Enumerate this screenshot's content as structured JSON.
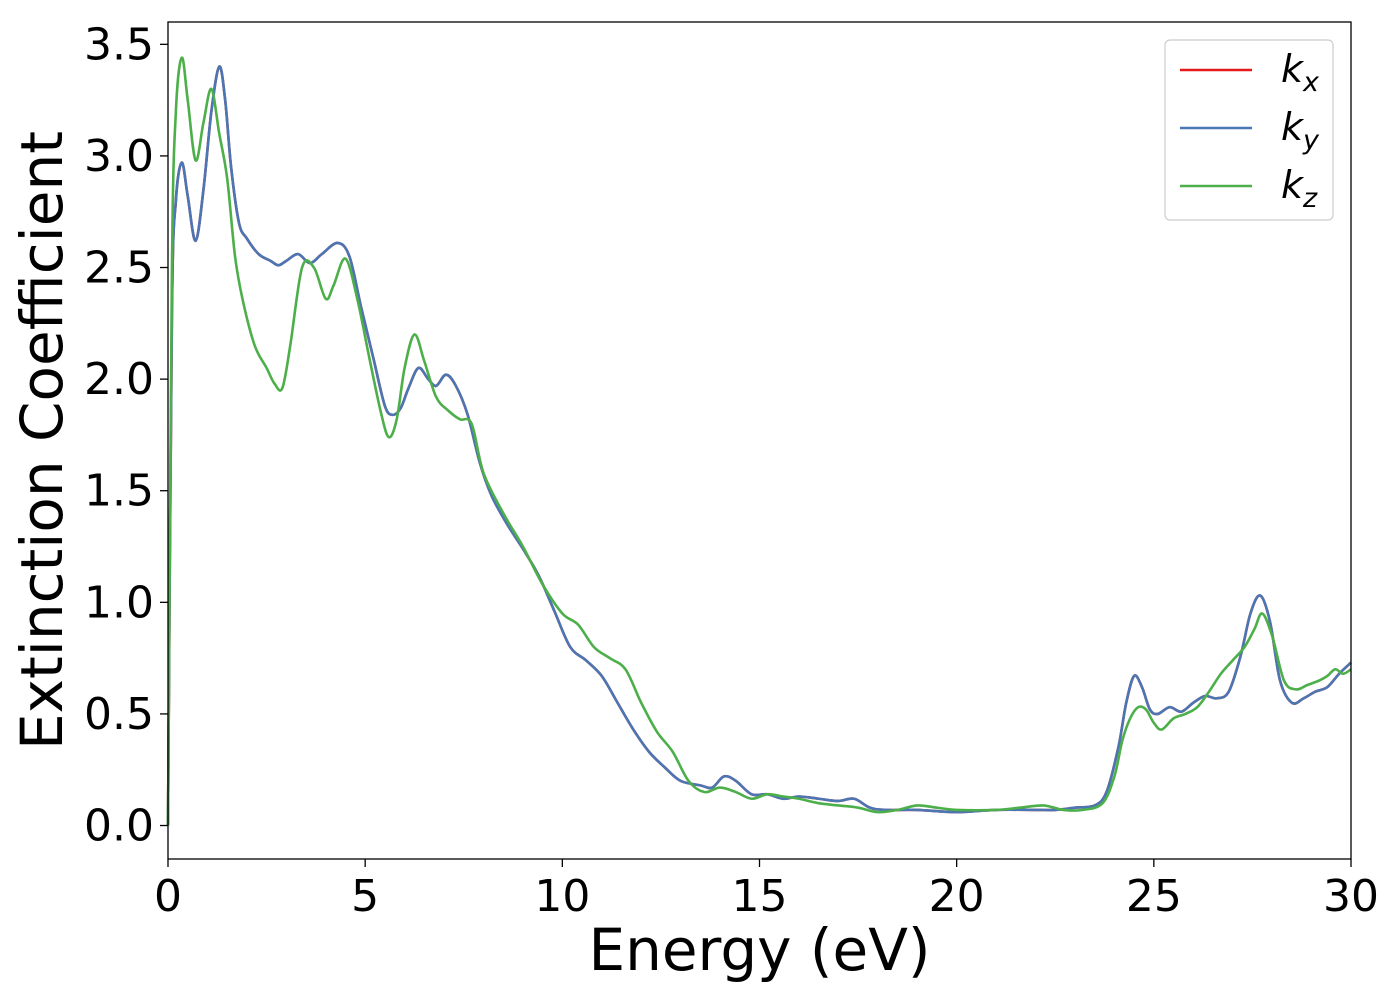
{
  "chart_data": {
    "type": "line",
    "xlabel": "Energy (eV)",
    "ylabel": "Extinction Coefficient",
    "xlim": [
      0,
      30
    ],
    "ylim": [
      -0.15,
      3.6
    ],
    "xticks": [
      0,
      5,
      10,
      15,
      20,
      25,
      30
    ],
    "yticks": [
      0.0,
      0.5,
      1.0,
      1.5,
      2.0,
      2.5,
      3.0,
      3.5
    ],
    "grid": false,
    "legend_position": "top-right",
    "series": [
      {
        "name": "k",
        "sub": "x",
        "color": "#e41a1c",
        "x": [
          0,
          0.1,
          0.2,
          0.35,
          0.5,
          0.7,
          0.9,
          1.1,
          1.3,
          1.45,
          1.6,
          1.8,
          2.0,
          2.3,
          2.6,
          2.8,
          3.0,
          3.3,
          3.6,
          3.9,
          4.3,
          4.6,
          4.9,
          5.2,
          5.5,
          5.7,
          5.9,
          6.1,
          6.35,
          6.6,
          6.8,
          7.05,
          7.3,
          7.6,
          7.9,
          8.2,
          8.6,
          9.0,
          9.4,
          9.8,
          10.2,
          10.6,
          11.0,
          11.4,
          11.8,
          12.2,
          12.6,
          13.0,
          13.5,
          13.8,
          14.1,
          14.4,
          14.8,
          15.2,
          15.6,
          16.0,
          16.5,
          17.0,
          17.4,
          17.8,
          18.2,
          19.0,
          20.0,
          21.0,
          22.0,
          22.5,
          23.0,
          23.5,
          23.8,
          24.1,
          24.3,
          24.5,
          24.7,
          24.9,
          25.1,
          25.4,
          25.7,
          26.0,
          26.3,
          26.6,
          26.9,
          27.2,
          27.45,
          27.7,
          27.95,
          28.2,
          28.5,
          28.8,
          29.1,
          29.4,
          29.7,
          30.0
        ],
        "y": [
          0.0,
          2.3,
          2.8,
          2.97,
          2.82,
          2.62,
          2.85,
          3.2,
          3.4,
          3.25,
          2.95,
          2.7,
          2.63,
          2.56,
          2.53,
          2.51,
          2.53,
          2.56,
          2.52,
          2.56,
          2.61,
          2.55,
          2.32,
          2.1,
          1.88,
          1.84,
          1.87,
          1.96,
          2.05,
          2.0,
          1.97,
          2.02,
          1.97,
          1.84,
          1.63,
          1.48,
          1.35,
          1.24,
          1.12,
          0.96,
          0.8,
          0.74,
          0.67,
          0.55,
          0.43,
          0.33,
          0.26,
          0.2,
          0.18,
          0.17,
          0.22,
          0.2,
          0.14,
          0.14,
          0.12,
          0.13,
          0.12,
          0.11,
          0.12,
          0.08,
          0.07,
          0.07,
          0.06,
          0.07,
          0.07,
          0.07,
          0.08,
          0.09,
          0.15,
          0.35,
          0.55,
          0.67,
          0.62,
          0.52,
          0.5,
          0.53,
          0.51,
          0.55,
          0.58,
          0.57,
          0.6,
          0.76,
          0.95,
          1.03,
          0.91,
          0.65,
          0.55,
          0.57,
          0.6,
          0.62,
          0.68,
          0.73
        ]
      },
      {
        "name": "k",
        "sub": "y",
        "color": "#4a76b4",
        "x": [
          0,
          0.1,
          0.2,
          0.35,
          0.5,
          0.7,
          0.9,
          1.1,
          1.3,
          1.45,
          1.6,
          1.8,
          2.0,
          2.3,
          2.6,
          2.8,
          3.0,
          3.3,
          3.6,
          3.9,
          4.3,
          4.6,
          4.9,
          5.2,
          5.5,
          5.7,
          5.9,
          6.1,
          6.35,
          6.6,
          6.8,
          7.05,
          7.3,
          7.6,
          7.9,
          8.2,
          8.6,
          9.0,
          9.4,
          9.8,
          10.2,
          10.6,
          11.0,
          11.4,
          11.8,
          12.2,
          12.6,
          13.0,
          13.5,
          13.8,
          14.1,
          14.4,
          14.8,
          15.2,
          15.6,
          16.0,
          16.5,
          17.0,
          17.4,
          17.8,
          18.2,
          19.0,
          20.0,
          21.0,
          22.0,
          22.5,
          23.0,
          23.5,
          23.8,
          24.1,
          24.3,
          24.5,
          24.7,
          24.9,
          25.1,
          25.4,
          25.7,
          26.0,
          26.3,
          26.6,
          26.9,
          27.2,
          27.45,
          27.7,
          27.95,
          28.2,
          28.5,
          28.8,
          29.1,
          29.4,
          29.7,
          30.0
        ],
        "y": [
          0.0,
          2.3,
          2.8,
          2.97,
          2.82,
          2.62,
          2.85,
          3.2,
          3.4,
          3.25,
          2.95,
          2.7,
          2.63,
          2.56,
          2.53,
          2.51,
          2.53,
          2.56,
          2.52,
          2.56,
          2.61,
          2.55,
          2.32,
          2.1,
          1.88,
          1.84,
          1.87,
          1.96,
          2.05,
          2.0,
          1.97,
          2.02,
          1.97,
          1.84,
          1.63,
          1.48,
          1.35,
          1.24,
          1.12,
          0.96,
          0.8,
          0.74,
          0.67,
          0.55,
          0.43,
          0.33,
          0.26,
          0.2,
          0.18,
          0.17,
          0.22,
          0.2,
          0.14,
          0.14,
          0.12,
          0.13,
          0.12,
          0.11,
          0.12,
          0.08,
          0.07,
          0.07,
          0.06,
          0.07,
          0.07,
          0.07,
          0.08,
          0.09,
          0.15,
          0.35,
          0.55,
          0.67,
          0.62,
          0.52,
          0.5,
          0.53,
          0.51,
          0.55,
          0.58,
          0.57,
          0.6,
          0.76,
          0.95,
          1.03,
          0.91,
          0.65,
          0.55,
          0.57,
          0.6,
          0.62,
          0.68,
          0.73
        ]
      },
      {
        "name": "k",
        "sub": "z",
        "color": "#4daf4a",
        "x": [
          0,
          0.1,
          0.2,
          0.35,
          0.5,
          0.7,
          0.9,
          1.1,
          1.3,
          1.5,
          1.7,
          1.9,
          2.2,
          2.5,
          2.7,
          2.9,
          3.1,
          3.4,
          3.7,
          4.0,
          4.2,
          4.5,
          4.8,
          5.1,
          5.4,
          5.6,
          5.8,
          6.0,
          6.25,
          6.5,
          6.8,
          7.1,
          7.4,
          7.7,
          8.0,
          8.5,
          9.0,
          9.5,
          10.0,
          10.4,
          10.8,
          11.2,
          11.6,
          12.0,
          12.4,
          12.8,
          13.2,
          13.6,
          14.0,
          14.4,
          14.8,
          15.2,
          15.6,
          16.0,
          16.5,
          17.0,
          17.5,
          18.0,
          18.5,
          19.0,
          19.5,
          20.0,
          21.0,
          21.6,
          22.2,
          22.7,
          23.2,
          23.7,
          24.0,
          24.2,
          24.4,
          24.6,
          24.8,
          25.0,
          25.2,
          25.5,
          25.8,
          26.1,
          26.4,
          26.7,
          27.0,
          27.3,
          27.55,
          27.75,
          28.0,
          28.3,
          28.6,
          28.9,
          29.2,
          29.4,
          29.6,
          29.8,
          30.0
        ],
        "y": [
          0.0,
          2.5,
          3.2,
          3.44,
          3.25,
          2.98,
          3.15,
          3.3,
          3.1,
          2.9,
          2.55,
          2.35,
          2.15,
          2.05,
          1.98,
          1.96,
          2.15,
          2.5,
          2.5,
          2.36,
          2.42,
          2.54,
          2.36,
          2.1,
          1.85,
          1.74,
          1.82,
          2.05,
          2.2,
          2.08,
          1.92,
          1.86,
          1.82,
          1.8,
          1.58,
          1.4,
          1.25,
          1.08,
          0.95,
          0.9,
          0.8,
          0.75,
          0.7,
          0.55,
          0.42,
          0.33,
          0.2,
          0.15,
          0.17,
          0.15,
          0.12,
          0.14,
          0.13,
          0.12,
          0.1,
          0.09,
          0.08,
          0.06,
          0.07,
          0.09,
          0.08,
          0.07,
          0.07,
          0.08,
          0.09,
          0.07,
          0.07,
          0.1,
          0.22,
          0.38,
          0.48,
          0.53,
          0.52,
          0.46,
          0.43,
          0.48,
          0.5,
          0.53,
          0.6,
          0.68,
          0.74,
          0.8,
          0.88,
          0.95,
          0.85,
          0.65,
          0.61,
          0.63,
          0.65,
          0.67,
          0.7,
          0.68,
          0.7
        ]
      }
    ]
  }
}
